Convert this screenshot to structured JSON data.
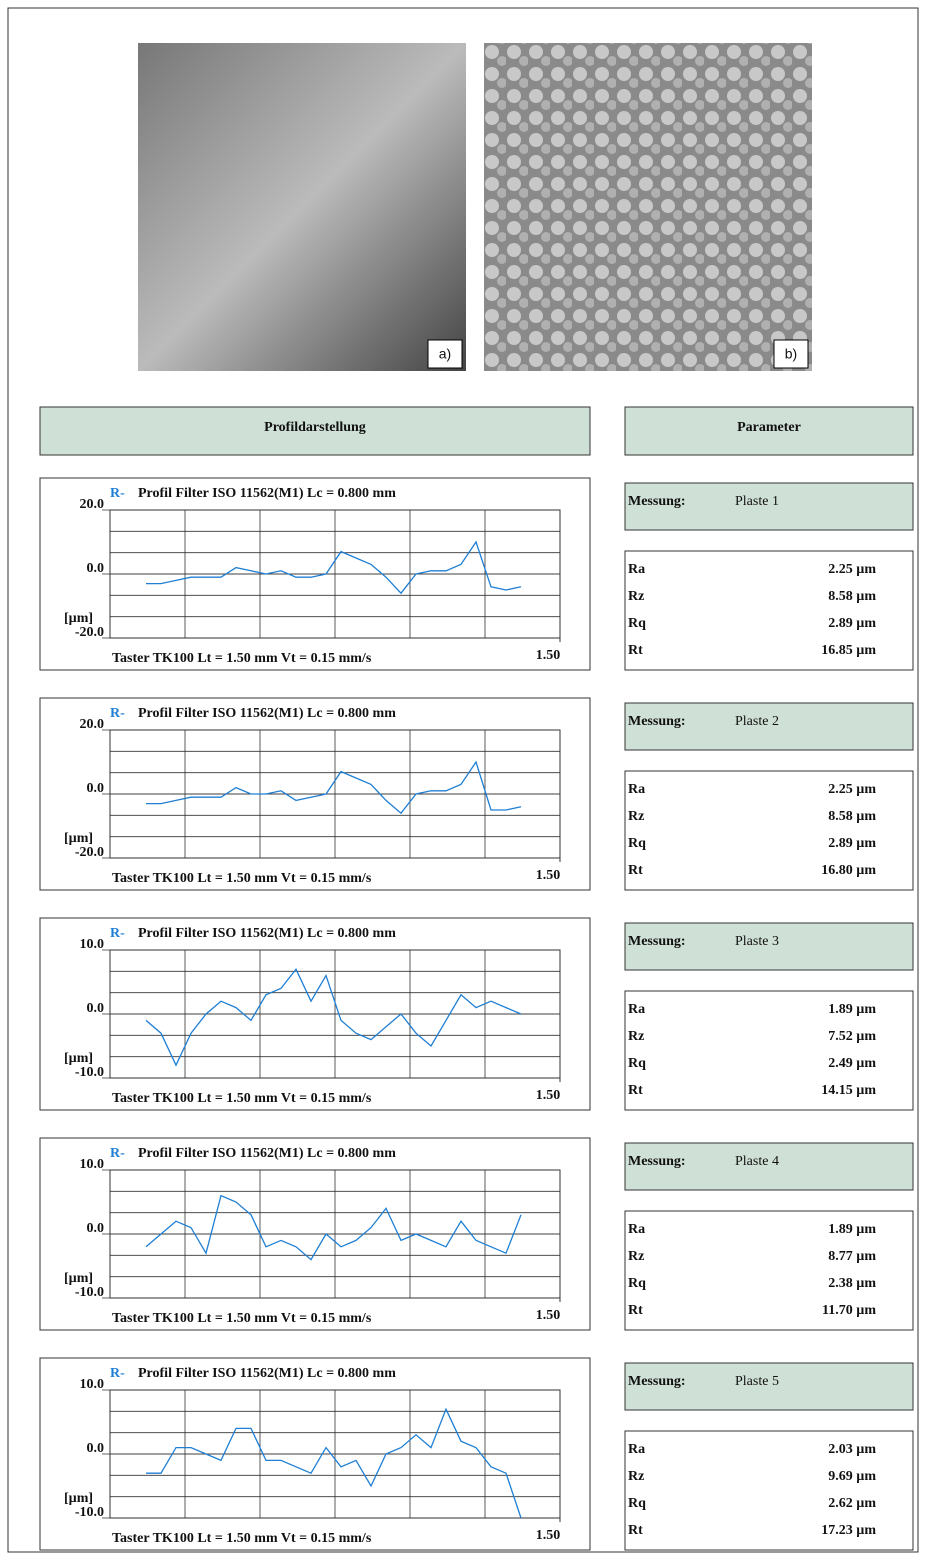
{
  "images": [
    {
      "label": "a)"
    },
    {
      "label": "b)"
    }
  ],
  "headers": {
    "profile": "Profildarstellung",
    "parameter": "Parameter"
  },
  "chart_data": [
    {
      "type": "line",
      "title": "Profil  Filter  ISO 11562(M1)  Lc = 0.800  mm",
      "footer": "Taster TK100    Lt = 1.50  mm    Vt = 0.15  mm/s",
      "y_label": "[µm]",
      "x": [
        0.12,
        0.17,
        0.22,
        0.27,
        0.32,
        0.37,
        0.42,
        0.47,
        0.52,
        0.57,
        0.62,
        0.67,
        0.72,
        0.77,
        0.82,
        0.87,
        0.92,
        0.97,
        1.02,
        1.07,
        1.12,
        1.17,
        1.22,
        1.27,
        1.32,
        1.37
      ],
      "series": [
        {
          "name": "R-",
          "color": "#1f7fd4",
          "values": [
            -3,
            -3,
            -2,
            -1,
            -1,
            -1,
            2,
            1,
            0,
            1,
            -1,
            -1,
            0,
            7,
            5,
            3,
            -1,
            -6,
            0,
            1,
            1,
            3,
            10,
            -4,
            -5,
            -4
          ]
        }
      ],
      "xlim": [
        0,
        1.5
      ],
      "xticks": [
        {
          "value": 1.5,
          "label": "1.50"
        }
      ],
      "ylim": [
        -20,
        20
      ],
      "yticks": [
        {
          "value": 20,
          "label": "20.0"
        },
        {
          "value": 0,
          "label": "0.0"
        },
        {
          "value": -20,
          "label": "-20.0"
        }
      ],
      "grid": true
    },
    {
      "type": "line",
      "title": "Profil  Filter  ISO 11562(M1)  Lc = 0.800  mm",
      "footer": "Taster TK100    Lt = 1.50  mm    Vt = 0.15  mm/s",
      "y_label": "[µm]",
      "x": [
        0.12,
        0.17,
        0.22,
        0.27,
        0.32,
        0.37,
        0.42,
        0.47,
        0.52,
        0.57,
        0.62,
        0.67,
        0.72,
        0.77,
        0.82,
        0.87,
        0.92,
        0.97,
        1.02,
        1.07,
        1.12,
        1.17,
        1.22,
        1.27,
        1.32,
        1.37
      ],
      "series": [
        {
          "name": "R-",
          "color": "#1f7fd4",
          "values": [
            -3,
            -3,
            -2,
            -1,
            -1,
            -1,
            2,
            0,
            0,
            1,
            -2,
            -1,
            0,
            7,
            5,
            3,
            -2,
            -6,
            0,
            1,
            1,
            3,
            10,
            -5,
            -5,
            -4
          ]
        }
      ],
      "xlim": [
        0,
        1.5
      ],
      "xticks": [
        {
          "value": 1.5,
          "label": "1.50"
        }
      ],
      "ylim": [
        -20,
        20
      ],
      "yticks": [
        {
          "value": 20,
          "label": "20.0"
        },
        {
          "value": 0,
          "label": "0.0"
        },
        {
          "value": -20,
          "label": "-20.0"
        }
      ],
      "grid": true
    },
    {
      "type": "line",
      "title": "Profil  Filter  ISO 11562(M1)  Lc = 0.800  mm",
      "footer": "Taster TK100    Lt = 1.50  mm    Vt = 0.15  mm/s",
      "y_label": "[µm]",
      "x": [
        0.12,
        0.17,
        0.22,
        0.27,
        0.32,
        0.37,
        0.42,
        0.47,
        0.52,
        0.57,
        0.62,
        0.67,
        0.72,
        0.77,
        0.82,
        0.87,
        0.92,
        0.97,
        1.02,
        1.07,
        1.12,
        1.17,
        1.22,
        1.27,
        1.32,
        1.37
      ],
      "series": [
        {
          "name": "R-",
          "color": "#1f7fd4",
          "values": [
            -1,
            -3,
            -8,
            -3,
            0,
            2,
            1,
            -1,
            3,
            4,
            7,
            2,
            6,
            -1,
            -3,
            -4,
            -2,
            0,
            -3,
            -5,
            -1,
            3,
            1,
            2,
            1,
            0
          ]
        }
      ],
      "xlim": [
        0,
        1.5
      ],
      "xticks": [
        {
          "value": 1.5,
          "label": "1.50"
        }
      ],
      "ylim": [
        -10,
        10
      ],
      "yticks": [
        {
          "value": 10,
          "label": "10.0"
        },
        {
          "value": 0,
          "label": "0.0"
        },
        {
          "value": -10,
          "label": "-10.0"
        }
      ],
      "grid": true
    },
    {
      "type": "line",
      "title": "Profil  Filter  ISO 11562(M1)  Lc = 0.800  mm",
      "footer": "Taster TK100    Lt = 1.50  mm    Vt = 0.15  mm/s",
      "y_label": "[µm]",
      "x": [
        0.12,
        0.17,
        0.22,
        0.27,
        0.32,
        0.37,
        0.42,
        0.47,
        0.52,
        0.57,
        0.62,
        0.67,
        0.72,
        0.77,
        0.82,
        0.87,
        0.92,
        0.97,
        1.02,
        1.07,
        1.12,
        1.17,
        1.22,
        1.27,
        1.32,
        1.37
      ],
      "series": [
        {
          "name": "R-",
          "color": "#1f7fd4",
          "values": [
            -2,
            0,
            2,
            1,
            -3,
            6,
            5,
            3,
            -2,
            -1,
            -2,
            -4,
            0,
            -2,
            -1,
            1,
            4,
            -1,
            0,
            -1,
            -2,
            2,
            -1,
            -2,
            -3,
            3
          ]
        }
      ],
      "xlim": [
        0,
        1.5
      ],
      "xticks": [
        {
          "value": 1.5,
          "label": "1.50"
        }
      ],
      "ylim": [
        -10,
        10
      ],
      "yticks": [
        {
          "value": 10,
          "label": "10.0"
        },
        {
          "value": 0,
          "label": "0.0"
        },
        {
          "value": -10,
          "label": "-10.0"
        }
      ],
      "grid": true
    },
    {
      "type": "line",
      "title": "Profil  Filter  ISO 11562(M1)  Lc = 0.800  mm",
      "footer": "Taster TK100    Lt = 1.50  mm    Vt = 0.15  mm/s",
      "y_label": "[µm]",
      "x": [
        0.12,
        0.17,
        0.22,
        0.27,
        0.32,
        0.37,
        0.42,
        0.47,
        0.52,
        0.57,
        0.62,
        0.67,
        0.72,
        0.77,
        0.82,
        0.87,
        0.92,
        0.97,
        1.02,
        1.07,
        1.12,
        1.17,
        1.22,
        1.27,
        1.32,
        1.37
      ],
      "series": [
        {
          "name": "R-",
          "color": "#1f7fd4",
          "values": [
            -3,
            -3,
            1,
            1,
            0,
            -1,
            4,
            4,
            -1,
            -1,
            -2,
            -3,
            1,
            -2,
            -1,
            -5,
            0,
            1,
            3,
            1,
            7,
            2,
            1,
            -2,
            -3,
            -10
          ]
        }
      ],
      "xlim": [
        0,
        1.5
      ],
      "xticks": [
        {
          "value": 1.5,
          "label": "1.50"
        }
      ],
      "ylim": [
        -10,
        10
      ],
      "yticks": [
        {
          "value": 10,
          "label": "10.0"
        },
        {
          "value": 0,
          "label": "0.0"
        },
        {
          "value": -10,
          "label": "-10.0"
        }
      ],
      "grid": true
    }
  ],
  "measurements": [
    {
      "label": "Messung:",
      "sample": "Plaste 1",
      "parameters": [
        {
          "name": "Ra",
          "value": "2.25 µm"
        },
        {
          "name": "Rz",
          "value": "8.58 µm"
        },
        {
          "name": "Rq",
          "value": "2.89 µm"
        },
        {
          "name": "Rt",
          "value": "16.85 µm"
        }
      ]
    },
    {
      "label": "Messung:",
      "sample": "Plaste 2",
      "parameters": [
        {
          "name": "Ra",
          "value": "2.25 µm"
        },
        {
          "name": "Rz",
          "value": "8.58 µm"
        },
        {
          "name": "Rq",
          "value": "2.89 µm"
        },
        {
          "name": "Rt",
          "value": "16.80 µm"
        }
      ]
    },
    {
      "label": "Messung:",
      "sample": "Plaste 3",
      "parameters": [
        {
          "name": "Ra",
          "value": "1.89 µm"
        },
        {
          "name": "Rz",
          "value": "7.52 µm"
        },
        {
          "name": "Rq",
          "value": "2.49 µm"
        },
        {
          "name": "Rt",
          "value": "14.15 µm"
        }
      ]
    },
    {
      "label": "Messung:",
      "sample": "Plaste 4",
      "parameters": [
        {
          "name": "Ra",
          "value": "1.89 µm"
        },
        {
          "name": "Rz",
          "value": "8.77 µm"
        },
        {
          "name": "Rq",
          "value": "2.38 µm"
        },
        {
          "name": "Rt",
          "value": "11.70 µm"
        }
      ]
    },
    {
      "label": "Messung:",
      "sample": "Plaste 5",
      "parameters": [
        {
          "name": "Ra",
          "value": "2.03 µm"
        },
        {
          "name": "Rz",
          "value": "9.69 µm"
        },
        {
          "name": "Rq",
          "value": "2.62 µm"
        },
        {
          "name": "Rt",
          "value": "17.23 µm"
        }
      ]
    }
  ]
}
